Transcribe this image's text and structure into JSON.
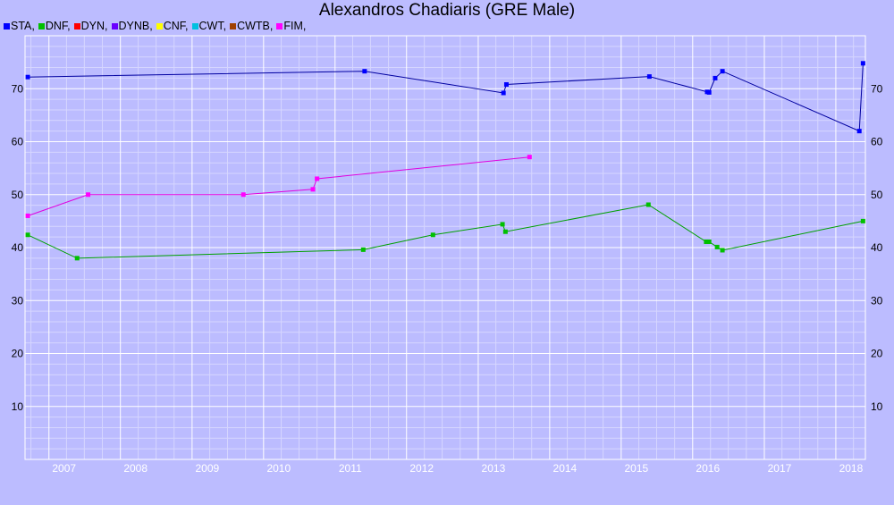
{
  "chart_data": {
    "type": "line",
    "title": "Alexandros Chadiaris (GRE Male)",
    "xlabel": "",
    "ylabel": "",
    "ylim": [
      0,
      80
    ],
    "xlim": [
      "2006-09-01",
      "2018-06-01"
    ],
    "yticks": [
      "10",
      "20",
      "30",
      "40",
      "50",
      "60",
      "70"
    ],
    "xticks": [
      "2007",
      "2008",
      "2009",
      "2010",
      "2011",
      "2012",
      "2013",
      "2014",
      "2015",
      "2016",
      "2017",
      "2018"
    ],
    "grid": true,
    "legend_position": "top-left",
    "legend": [
      {
        "label": "STA,",
        "color": "#0000ff"
      },
      {
        "label": "DNF,",
        "color": "#00c000"
      },
      {
        "label": "DYN,",
        "color": "#ff0000"
      },
      {
        "label": "DYNB,",
        "color": "#6a00ff"
      },
      {
        "label": "CNF,",
        "color": "#ffff00"
      },
      {
        "label": "CWT,",
        "color": "#00c0e0"
      },
      {
        "label": "CWTB,",
        "color": "#a04000"
      },
      {
        "label": "FIM,",
        "color": "#ff00ff"
      }
    ],
    "series": [
      {
        "name": "STA",
        "line_color": "#0000a0",
        "marker_color": "#0000ff",
        "points": [
          [
            "2006-09-15",
            72.2
          ],
          [
            "2011-06-01",
            73.3
          ],
          [
            "2013-05-10",
            69.2
          ],
          [
            "2013-05-25",
            70.8
          ],
          [
            "2015-05-25",
            72.3
          ],
          [
            "2016-03-15",
            69.4
          ],
          [
            "2016-03-25",
            69.3
          ],
          [
            "2016-04-25",
            72.0
          ],
          [
            "2016-06-01",
            73.3
          ],
          [
            "2018-05-01",
            62.0
          ],
          [
            "2018-05-20",
            74.8
          ]
        ]
      },
      {
        "name": "DNF",
        "line_color": "#00a000",
        "marker_color": "#00c000",
        "points": [
          [
            "2006-09-15",
            42.4
          ],
          [
            "2007-05-25",
            38.0
          ],
          [
            "2011-05-25",
            39.6
          ],
          [
            "2012-05-15",
            42.4
          ],
          [
            "2013-05-05",
            44.4
          ],
          [
            "2013-05-20",
            43.0
          ],
          [
            "2015-05-20",
            48.1
          ],
          [
            "2016-03-10",
            41.1
          ],
          [
            "2016-03-25",
            41.1
          ],
          [
            "2016-05-05",
            40.1
          ],
          [
            "2016-06-01",
            39.5
          ],
          [
            "2018-05-20",
            45.0
          ]
        ]
      },
      {
        "name": "FIM",
        "line_color": "#e000e0",
        "marker_color": "#ff00ff",
        "points": [
          [
            "2006-09-15",
            46.0
          ],
          [
            "2007-07-20",
            50.0
          ],
          [
            "2009-09-20",
            50.0
          ],
          [
            "2010-09-10",
            51.0
          ],
          [
            "2010-10-01",
            53.0
          ],
          [
            "2013-09-20",
            57.1
          ]
        ]
      }
    ]
  }
}
